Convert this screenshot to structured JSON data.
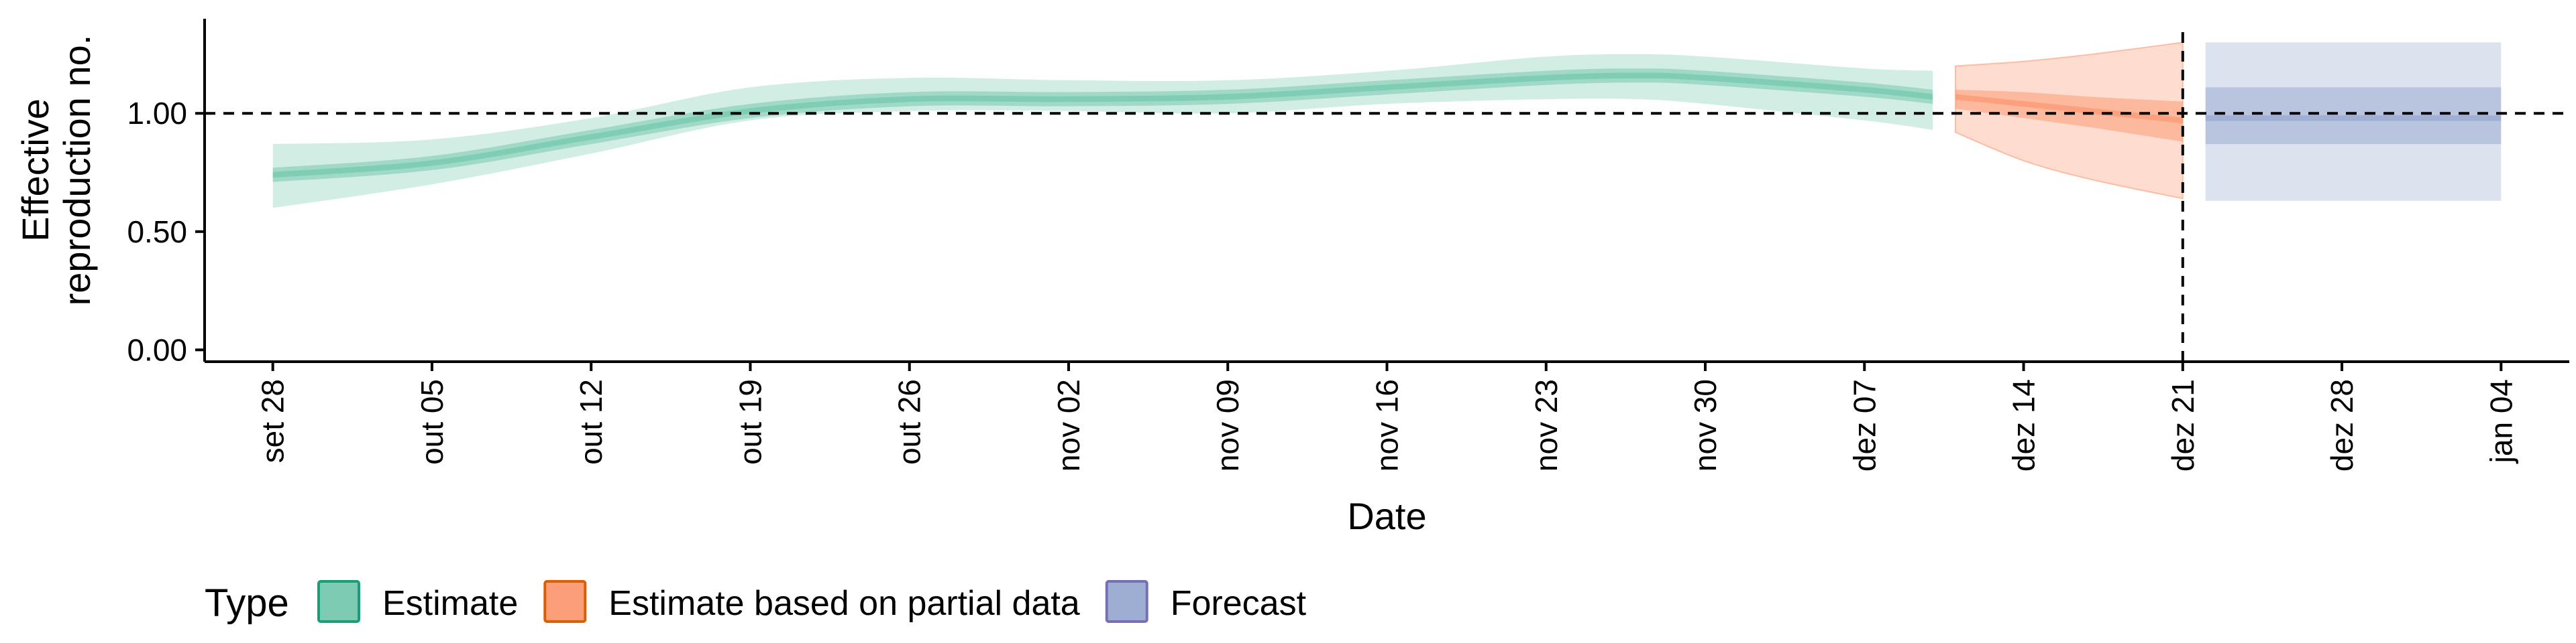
{
  "chart_data": {
    "type": "area",
    "xlabel": "Date",
    "ylabel": "Effective reproduction no.",
    "ylabel_lines": [
      "Effective",
      "reproduction no."
    ],
    "xlim": [
      "2020-09-25",
      "2021-01-07"
    ],
    "ylim": [
      -0.05,
      1.4
    ],
    "x_ticks": [
      "2020-09-28",
      "2020-10-05",
      "2020-10-12",
      "2020-10-19",
      "2020-10-26",
      "2020-11-02",
      "2020-11-09",
      "2020-11-16",
      "2020-11-23",
      "2020-11-30",
      "2020-12-07",
      "2020-12-14",
      "2020-12-21",
      "2020-12-28",
      "2021-01-04"
    ],
    "x_tick_labels": [
      "set 28",
      "out 05",
      "out 12",
      "out 19",
      "out 26",
      "nov 02",
      "nov 09",
      "nov 16",
      "nov 23",
      "nov 30",
      "dez 07",
      "dez 14",
      "dez 21",
      "dez 28",
      "jan 04"
    ],
    "y_ticks": [
      0,
      0.5,
      1.0
    ],
    "y_tick_labels": [
      "0.00",
      "0.50",
      "1.00"
    ],
    "reference_lines": {
      "horizontal_y": 1.0,
      "vertical_x": "2020-12-21"
    },
    "grid": false,
    "legend": {
      "title": "Type",
      "position": "bottom-left",
      "entries": [
        "Estimate",
        "Estimate based on partial data",
        "Forecast"
      ]
    },
    "series": [
      {
        "name": "Estimate",
        "color": "#1b9e77",
        "fill": "#66c2a5",
        "x": [
          "2020-09-28",
          "2020-10-05",
          "2020-10-12",
          "2020-10-19",
          "2020-10-26",
          "2020-11-02",
          "2020-11-09",
          "2020-11-16",
          "2020-11-23",
          "2020-11-27",
          "2020-11-30",
          "2020-12-07",
          "2020-12-10"
        ],
        "median": [
          0.74,
          0.79,
          0.9,
          1.01,
          1.06,
          1.06,
          1.07,
          1.11,
          1.15,
          1.16,
          1.15,
          1.1,
          1.07
        ],
        "lower_50": [
          0.71,
          0.76,
          0.87,
          0.98,
          1.03,
          1.03,
          1.04,
          1.08,
          1.12,
          1.13,
          1.12,
          1.07,
          1.04
        ],
        "upper_50": [
          0.77,
          0.82,
          0.93,
          1.04,
          1.09,
          1.09,
          1.1,
          1.14,
          1.18,
          1.19,
          1.18,
          1.13,
          1.1
        ],
        "lower_90": [
          0.6,
          0.7,
          0.83,
          0.97,
          1.01,
          1.01,
          1.0,
          1.04,
          1.06,
          1.06,
          1.04,
          0.97,
          0.93
        ],
        "upper_90": [
          0.87,
          0.89,
          0.98,
          1.11,
          1.15,
          1.14,
          1.14,
          1.18,
          1.24,
          1.25,
          1.24,
          1.19,
          1.18
        ]
      },
      {
        "name": "Estimate based on partial data",
        "color": "#d95f02",
        "fill": "#fc8d62",
        "x": [
          "2020-12-11",
          "2020-12-14",
          "2020-12-17",
          "2020-12-21"
        ],
        "median": [
          1.07,
          1.04,
          1.01,
          0.97
        ],
        "lower_50": [
          1.02,
          0.98,
          0.94,
          0.88
        ],
        "upper_50": [
          1.1,
          1.09,
          1.07,
          1.05
        ],
        "lower_90": [
          0.92,
          0.8,
          0.72,
          0.64
        ],
        "upper_90": [
          1.2,
          1.22,
          1.25,
          1.3
        ]
      },
      {
        "name": "Forecast",
        "color": "#7570b3",
        "fill": "#8da0cb",
        "x": [
          "2020-12-22",
          "2021-01-04"
        ],
        "median": [
          0.98,
          0.98
        ],
        "lower_50": [
          0.87,
          0.87
        ],
        "upper_50": [
          1.11,
          1.11
        ],
        "lower_90": [
          0.63,
          0.63
        ],
        "upper_90": [
          1.3,
          1.3
        ]
      }
    ]
  }
}
